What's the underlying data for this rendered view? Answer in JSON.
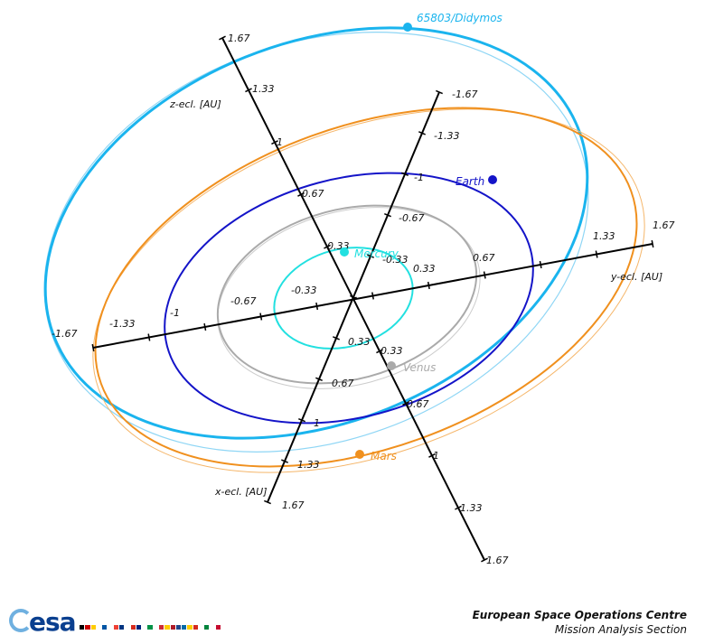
{
  "axes": {
    "y": {
      "title": "y-ecl. [AU]",
      "ticks": [
        "-1.67",
        "-1.33",
        "-1",
        "-0.67",
        "-0.33",
        "0.33",
        "0.67",
        "1.33",
        "1.67"
      ]
    },
    "x": {
      "title": "x-ecl. [AU]",
      "ticks": [
        "-1.67",
        "-1.33",
        "-1",
        "-0.67",
        "-0.33",
        "0.33",
        "0.67",
        "1",
        "1.33",
        "1.67"
      ]
    },
    "z": {
      "title": "z-ecl. [AU]",
      "ticks": [
        "1.67",
        "1.33",
        "1",
        "0.67",
        "0.33",
        "0.33",
        "0.67",
        "1",
        "1.33",
        "1.67"
      ]
    }
  },
  "bodies": [
    {
      "name": "65803/Didymos",
      "color": "#1ab4ee"
    },
    {
      "name": "Earth",
      "color": "#1414c8"
    },
    {
      "name": "Mars",
      "color": "#f0901e"
    },
    {
      "name": "Venus",
      "color": "#aaaaaa"
    },
    {
      "name": "Mercury",
      "color": "#22e0e0"
    }
  ],
  "footer": {
    "logo": "esa",
    "title": "European Space Operations Centre",
    "subtitle": "Mission Analysis Section"
  },
  "flag_colors": [
    "#000000",
    "#cc0000",
    "#ffcc00",
    "#ffffff",
    "#0055a4",
    "#ffffff",
    "#ef4135",
    "#003580",
    "#ffffff",
    "#d52b1e",
    "#00247d",
    "#ffffff",
    "#009246",
    "#ffffff",
    "#ce2b37",
    "#fecb00",
    "#ae1c28",
    "#21468b",
    "#006aa7",
    "#fecc00",
    "#d52b1e",
    "#ffffff",
    "#00843d",
    "#ffffff",
    "#c60c30"
  ]
}
